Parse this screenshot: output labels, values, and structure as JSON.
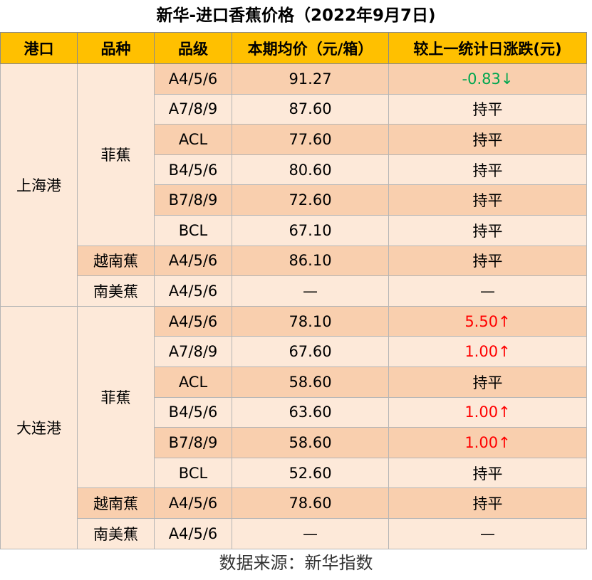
{
  "title": "新华-进口香蕉价格（2022年9月7日)",
  "headers": [
    "港口",
    "品种",
    "品级",
    "本期均价（元/箱）",
    "较上一统计日涨跌(元)"
  ],
  "rows": [
    {
      "port": "上海港",
      "variety": "菲蕉",
      "grade": "A4/5/6",
      "price": "91.27",
      "change": "-0.83↓",
      "trend": "down"
    },
    {
      "port": "",
      "variety": "",
      "grade": "A7/8/9",
      "price": "87.60",
      "change": "持平",
      "trend": "flat"
    },
    {
      "port": "",
      "variety": "",
      "grade": "ACL",
      "price": "77.60",
      "change": "持平",
      "trend": "flat"
    },
    {
      "port": "",
      "variety": "",
      "grade": "B4/5/6",
      "price": "80.60",
      "change": "持平",
      "trend": "flat"
    },
    {
      "port": "",
      "variety": "",
      "grade": "B7/8/9",
      "price": "72.60",
      "change": "持平",
      "trend": "flat"
    },
    {
      "port": "",
      "variety": "",
      "grade": "BCL",
      "price": "67.10",
      "change": "持平",
      "trend": "flat"
    },
    {
      "port": "",
      "variety": "越南蕉",
      "grade": "A4/5/6",
      "price": "86.10",
      "change": "持平",
      "trend": "flat"
    },
    {
      "port": "",
      "variety": "南美蕉",
      "grade": "A4/5/6",
      "price": "—",
      "change": "—",
      "trend": "flat"
    },
    {
      "port": "大连港",
      "variety": "菲蕉",
      "grade": "A4/5/6",
      "price": "78.10",
      "change": "5.50↑",
      "trend": "up"
    },
    {
      "port": "",
      "variety": "",
      "grade": "A7/8/9",
      "price": "67.60",
      "change": "1.00↑",
      "trend": "up"
    },
    {
      "port": "",
      "variety": "",
      "grade": "ACL",
      "price": "58.60",
      "change": "持平",
      "trend": "flat"
    },
    {
      "port": "",
      "variety": "",
      "grade": "B4/5/6",
      "price": "63.60",
      "change": "1.00↑",
      "trend": "up"
    },
    {
      "port": "",
      "variety": "",
      "grade": "B7/8/9",
      "price": "58.60",
      "change": "1.00↑",
      "trend": "up"
    },
    {
      "port": "",
      "variety": "",
      "grade": "BCL",
      "price": "52.60",
      "change": "持平",
      "trend": "flat"
    },
    {
      "port": "",
      "variety": "越南蕉",
      "grade": "A4/5/6",
      "price": "78.60",
      "change": "持平",
      "trend": "flat"
    },
    {
      "port": "",
      "variety": "南美蕉",
      "grade": "A4/5/6",
      "price": "—",
      "change": "—",
      "trend": "flat"
    }
  ],
  "source": "数据来源：新华指数",
  "colors": {
    "header": "#ffc000",
    "row_light": "#fde9d9",
    "row_dark": "#f9cfae",
    "up": "#ff0000",
    "down": "#00a64f"
  }
}
